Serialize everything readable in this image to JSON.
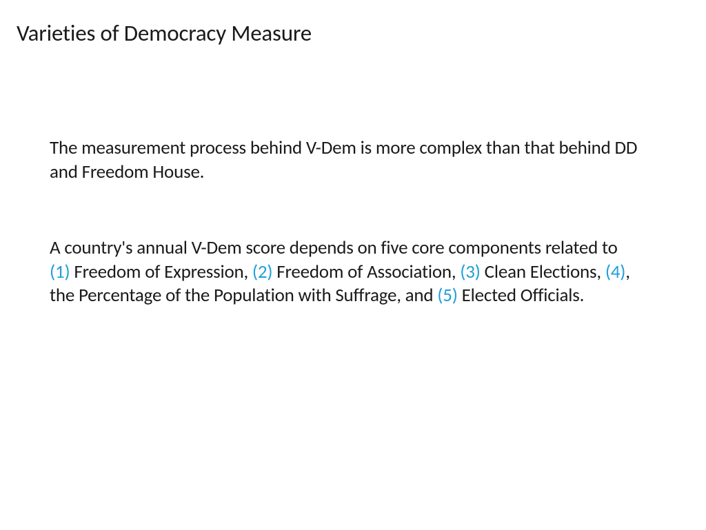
{
  "title": "Varieties of Democracy Measure",
  "paragraph1": "The measurement process behind V-Dem is more complex than that behind DD and Freedom House.",
  "paragraph2": {
    "lead": "A country's annual V-Dem score depends on five core components related to ",
    "n1": "(1)",
    "t1": " Freedom of Expression, ",
    "n2": "(2)",
    "t2": " Freedom of Association, ",
    "n3": "(3)",
    "t3": " Clean Elections, ",
    "n4": "(4)",
    "t4": ", the Percentage of the Population with Suffrage, and ",
    "n5": "(5)",
    "t5": " Elected Officials."
  },
  "colors": {
    "text": "#1a1a1a",
    "accent": "#1e9fd8",
    "background": "#ffffff"
  },
  "typography": {
    "title_fontsize": 33,
    "body_fontsize": 27,
    "font_family": "Calibri"
  }
}
